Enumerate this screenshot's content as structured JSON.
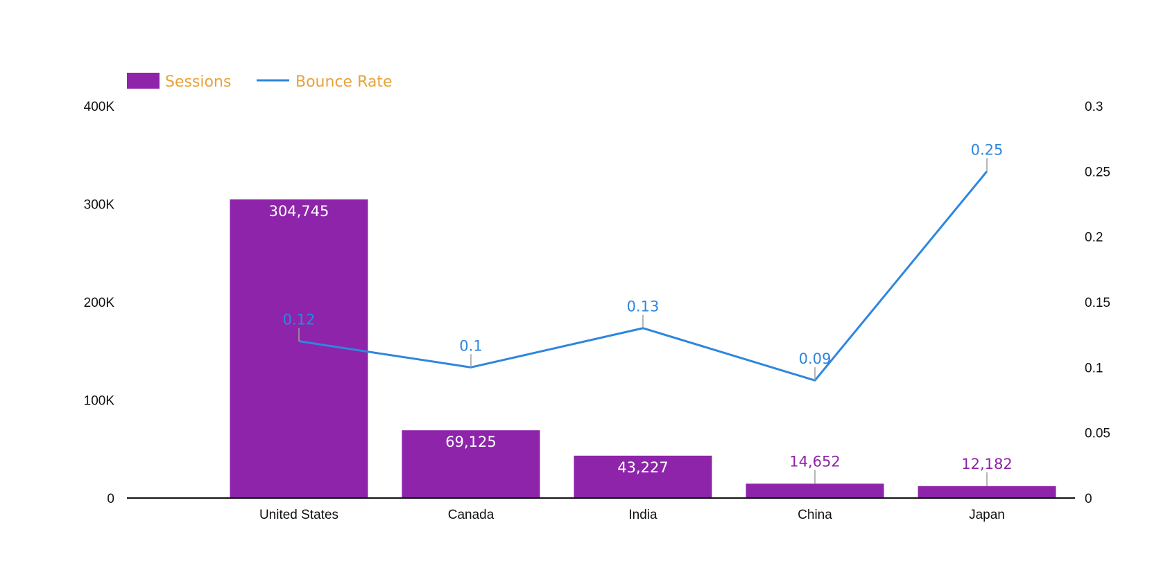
{
  "chart_data": {
    "type": "bar",
    "title": "",
    "categories": [
      "United States",
      "Canada",
      "India",
      "China",
      "Japan"
    ],
    "series": [
      {
        "name": "Sessions",
        "kind": "bar",
        "axis": "left",
        "color": "#8e24aa",
        "values": [
          304745,
          69125,
          43227,
          14652,
          12182
        ],
        "labels": [
          "304,745",
          "69,125",
          "43,227",
          "14,652",
          "12,182"
        ]
      },
      {
        "name": "Bounce Rate",
        "kind": "line",
        "axis": "right",
        "color": "#2e86de",
        "values": [
          0.12,
          0.1,
          0.13,
          0.09,
          0.25
        ],
        "labels": [
          "0.12",
          "0.1",
          "0.13",
          "0.09",
          "0.25"
        ]
      }
    ],
    "y_left": {
      "ylim": [
        0,
        400000
      ],
      "ticks": [
        0,
        100000,
        200000,
        300000,
        400000
      ],
      "tick_labels": [
        "0",
        "100K",
        "200K",
        "300K",
        "400K"
      ]
    },
    "y_right": {
      "ylim": [
        0,
        0.3
      ],
      "ticks": [
        0,
        0.05,
        0.1,
        0.15,
        0.2,
        0.25,
        0.3
      ],
      "tick_labels": [
        "0",
        "0.05",
        "0.1",
        "0.15",
        "0.2",
        "0.25",
        "0.3"
      ]
    },
    "grid": false,
    "legend_position": "top-left",
    "colors": {
      "bar": "#8e24aa",
      "line": "#2e86de",
      "legend_text": "#e8a23a",
      "bar_label_inside": "#ffffff",
      "bar_label_outside": "#8e24aa",
      "axis": "#111111",
      "leader": "#9e9e9e"
    }
  }
}
